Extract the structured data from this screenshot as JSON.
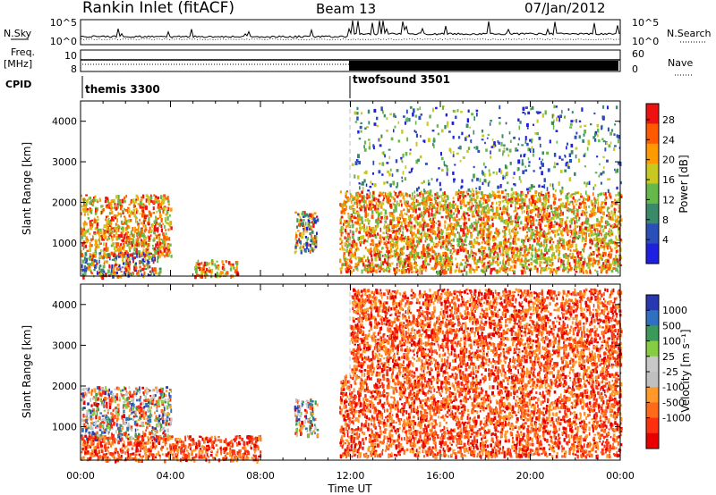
{
  "header": {
    "site": "Rankin Inlet (fitACF)",
    "beam": "Beam 13",
    "date": "07/Jan/2012"
  },
  "aux_panels": {
    "nsky_label": "N.Sky",
    "nsearch_label": "N.Search",
    "noise_ticks_left": [
      "10^5",
      "10^0"
    ],
    "noise_ticks_right": [
      "10^5",
      "10^0"
    ],
    "freq_label_1": "Freq.",
    "freq_label_2": "[MHz]",
    "freq_ticks": [
      "10",
      "8"
    ],
    "nave_label": "Nave",
    "nave_ticks": [
      "60",
      "0"
    ],
    "cpid_label": "CPID",
    "cpid_entries": [
      "themis 3300",
      "twofsound 3501"
    ]
  },
  "colors": {
    "power_scale": [
      "#1f1fe0",
      "#2b4fb8",
      "#3a8a6a",
      "#66b84a",
      "#c8c820",
      "#ff9900",
      "#ff5a00",
      "#ee1111"
    ],
    "velocity_scale": [
      "#2838b0",
      "#2f70c0",
      "#3a9a5a",
      "#88cc44",
      "#c8c8c8",
      "#c0c0c0",
      "#ff9a2a",
      "#ff6a1a",
      "#ff3010",
      "#e80000"
    ]
  },
  "chart_data": [
    {
      "type": "heatmap",
      "title": "",
      "xlabel": "",
      "ylabel": "Slant Range [km]",
      "xlim": [
        "00:00",
        "24:00"
      ],
      "ylim": [
        180,
        4500
      ],
      "yticks": [
        1000,
        2000,
        3000,
        4000
      ],
      "colorbar": {
        "label": "Power [dB]",
        "ticks": [
          "28",
          "24",
          "20",
          "16",
          "12",
          "8",
          "4"
        ],
        "range": [
          0,
          32
        ]
      },
      "mode_change_time": "12:00",
      "echo_regions": [
        {
          "t_start": "00:00",
          "t_end": "04:00",
          "range_min": 700,
          "range_max": 2200,
          "level": "high"
        },
        {
          "t_start": "00:00",
          "t_end": "03:30",
          "range_min": 200,
          "range_max": 800,
          "level": "mixed"
        },
        {
          "t_start": "05:00",
          "t_end": "07:00",
          "range_min": 200,
          "range_max": 600,
          "level": "high"
        },
        {
          "t_start": "09:30",
          "t_end": "10:30",
          "range_min": 800,
          "range_max": 1800,
          "level": "mixed"
        },
        {
          "t_start": "11:30",
          "t_end": "24:00",
          "range_min": 300,
          "range_max": 2300,
          "level": "high"
        },
        {
          "t_start": "12:00",
          "t_end": "24:00",
          "range_min": 2300,
          "range_max": 4400,
          "level": "low"
        }
      ]
    },
    {
      "type": "heatmap",
      "title": "",
      "xlabel": "Time UT",
      "ylabel": "Slant Range [km]",
      "xlim": [
        "00:00",
        "24:00"
      ],
      "xticks": [
        "00:00",
        "04:00",
        "08:00",
        "12:00",
        "16:00",
        "20:00",
        "00:00"
      ],
      "ylim": [
        180,
        4500
      ],
      "yticks": [
        1000,
        2000,
        3000,
        4000
      ],
      "colorbar": {
        "label": "Velocity [m s⁻¹]",
        "ticks": [
          "1000",
          "500",
          "100",
          "25",
          "-25",
          "-100",
          "-500",
          "-1000"
        ]
      },
      "mode_change_time": "12:00",
      "echo_regions": [
        {
          "t_start": "00:00",
          "t_end": "04:00",
          "range_min": 700,
          "range_max": 2000,
          "sign": "mixed"
        },
        {
          "t_start": "00:00",
          "t_end": "08:00",
          "range_min": 200,
          "range_max": 800,
          "sign": "away"
        },
        {
          "t_start": "09:30",
          "t_end": "10:30",
          "range_min": 800,
          "range_max": 1700,
          "sign": "mixed"
        },
        {
          "t_start": "11:30",
          "t_end": "24:00",
          "range_min": 300,
          "range_max": 2300,
          "sign": "away"
        },
        {
          "t_start": "12:00",
          "t_end": "24:00",
          "range_min": 2300,
          "range_max": 4400,
          "sign": "away"
        }
      ]
    }
  ]
}
